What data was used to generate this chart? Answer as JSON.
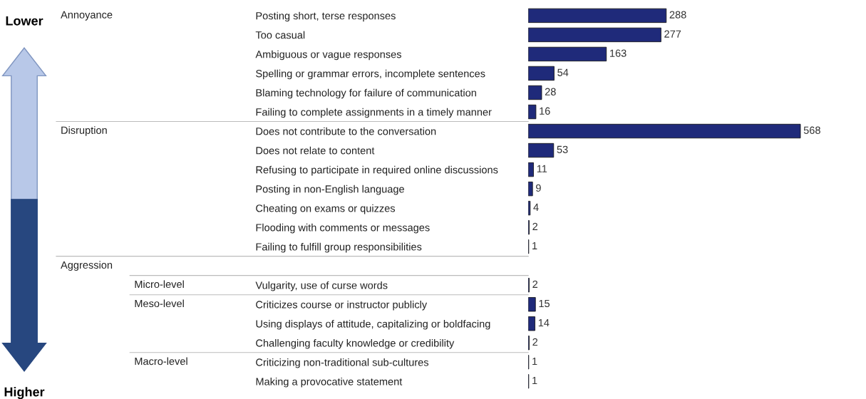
{
  "chart_data": {
    "type": "bar",
    "orientation": "horizontal",
    "data_labels": true,
    "color": "#1f2a7a",
    "categories": [
      "Posting short, terse responses",
      "Too casual",
      "Ambiguous or vague responses",
      "Spelling or grammar errors, incomplete sentences",
      "Blaming technology for failure of communication",
      "Failing to complete assignments in a timely manner",
      "Does not contribute to the conversation",
      "Does not relate to content",
      "Refusing to participate in required online discussions",
      "Posting in non-English language",
      "Cheating on exams or quizzes",
      "Flooding with comments or messages",
      "Failing to fulfill group responsibilities",
      null,
      "Vulgarity, use of curse words",
      "Criticizes course or instructor publicly",
      "Using displays of attitude, capitalizing or boldfacing",
      "Challenging faculty knowledge or credibility",
      "Criticizing non-traditional sub-cultures",
      "Making a provocative statement"
    ],
    "values": [
      288,
      277,
      163,
      54,
      28,
      16,
      568,
      53,
      11,
      9,
      4,
      2,
      1,
      null,
      2,
      15,
      14,
      2,
      1,
      1
    ],
    "annotations": [
      "Lower",
      "Annoyance",
      "Disruption",
      "Aggression",
      "Micro-level",
      "Meso-level",
      "Macro-level",
      "Higher"
    ]
  }
}
